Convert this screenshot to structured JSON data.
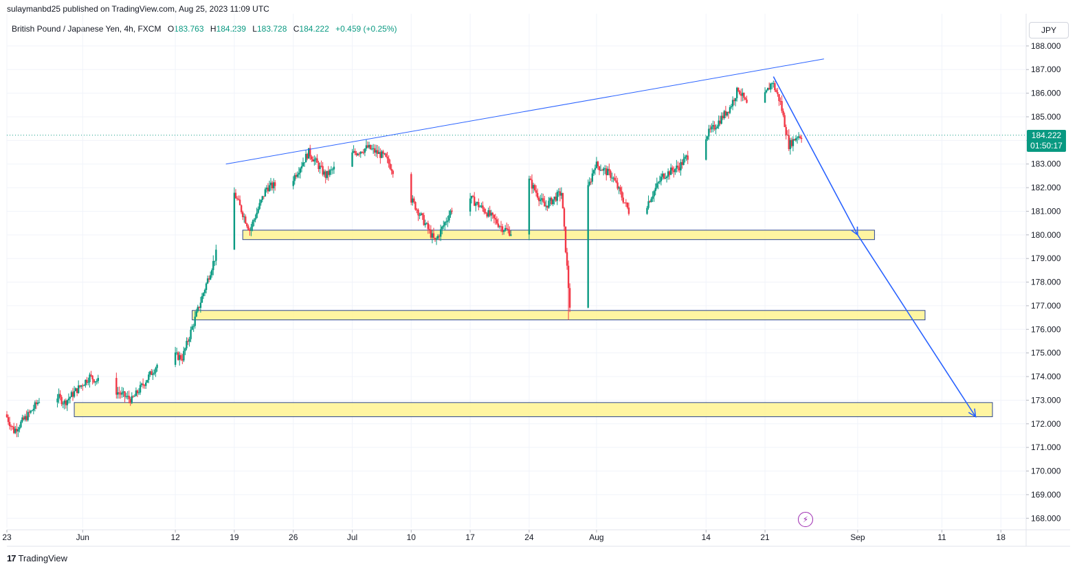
{
  "header": {
    "published": "sulaymanbd25 published on TradingView.com, Aug 25, 2023 11:09 UTC",
    "symbol": "British Pound / Japanese Yen, 4h, FXCM",
    "ohlc": [
      {
        "label": "O",
        "value": "183.763"
      },
      {
        "label": "H",
        "value": "184.239"
      },
      {
        "label": "L",
        "value": "183.728"
      },
      {
        "label": "C",
        "value": "184.222"
      }
    ],
    "change": "+0.459 (+0.25%)",
    "currency": "JPY"
  },
  "price_tag": {
    "price": "184.222",
    "countdown": "01:50:17"
  },
  "footer": {
    "brand_mark": "17",
    "brand": "TradingView"
  },
  "colors": {
    "up": "#089981",
    "down": "#f23645",
    "zone_fill": "#fff59d",
    "zone_border": "#1e3a8a",
    "trendline": "#2962ff"
  },
  "chart_data": {
    "type": "candlestick",
    "y_axis": {
      "min": 167.6,
      "max": 188.2,
      "ticks": [
        188,
        187,
        186,
        185,
        184,
        183,
        182,
        181,
        180,
        179,
        178,
        177,
        176,
        175,
        174,
        173,
        172,
        171,
        170,
        169,
        168
      ],
      "tick_labels": [
        "188.000",
        "187.000",
        "186.000",
        "185.000",
        "184.000",
        "183.000",
        "182.000",
        "181.000",
        "180.000",
        "179.000",
        "178.000",
        "177.000",
        "176.000",
        "175.000",
        "174.000",
        "173.000",
        "172.000",
        "171.000",
        "170.000",
        "169.000",
        "168.000"
      ]
    },
    "x_axis": {
      "start": "2023-05-23",
      "end": "2023-09-21",
      "ticks": [
        {
          "date": "2023-05-23",
          "label": "23"
        },
        {
          "date": "2023-06-01",
          "label": "Jun"
        },
        {
          "date": "2023-06-12",
          "label": "12"
        },
        {
          "date": "2023-06-19",
          "label": "19"
        },
        {
          "date": "2023-06-26",
          "label": "26"
        },
        {
          "date": "2023-07-03",
          "label": "Jul"
        },
        {
          "date": "2023-07-10",
          "label": "10"
        },
        {
          "date": "2023-07-17",
          "label": "17"
        },
        {
          "date": "2023-07-24",
          "label": "24"
        },
        {
          "date": "2023-08-01",
          "label": "Aug"
        },
        {
          "date": "2023-08-14",
          "label": "14"
        },
        {
          "date": "2023-08-21",
          "label": "21"
        },
        {
          "date": "2023-09-01",
          "label": "Sep"
        },
        {
          "date": "2023-09-11",
          "label": "11"
        },
        {
          "date": "2023-09-18",
          "label": "18"
        }
      ]
    },
    "price_path": [
      {
        "date": "2023-05-23",
        "price": 172.4
      },
      {
        "date": "2023-05-24",
        "price": 171.7
      },
      {
        "date": "2023-05-26",
        "price": 172.5
      },
      {
        "date": "2023-05-28",
        "price": 173.5
      },
      {
        "date": "2023-05-30",
        "price": 172.9
      },
      {
        "date": "2023-06-02",
        "price": 174.0
      },
      {
        "date": "2023-06-05",
        "price": 173.4
      },
      {
        "date": "2023-06-07",
        "price": 173.0
      },
      {
        "date": "2023-06-09",
        "price": 174.0
      },
      {
        "date": "2023-06-11",
        "price": 175.0
      },
      {
        "date": "2023-06-13",
        "price": 174.8
      },
      {
        "date": "2023-06-15",
        "price": 177.0
      },
      {
        "date": "2023-06-17",
        "price": 179.2
      },
      {
        "date": "2023-06-19",
        "price": 181.9
      },
      {
        "date": "2023-06-21",
        "price": 180.2
      },
      {
        "date": "2023-06-23",
        "price": 182.0
      },
      {
        "date": "2023-06-26",
        "price": 182.3
      },
      {
        "date": "2023-06-28",
        "price": 183.5
      },
      {
        "date": "2023-06-30",
        "price": 182.5
      },
      {
        "date": "2023-07-03",
        "price": 183.4
      },
      {
        "date": "2023-07-05",
        "price": 183.7
      },
      {
        "date": "2023-07-07",
        "price": 183.3
      },
      {
        "date": "2023-07-09",
        "price": 182.2
      },
      {
        "date": "2023-07-11",
        "price": 181.0
      },
      {
        "date": "2023-07-13",
        "price": 179.7
      },
      {
        "date": "2023-07-15",
        "price": 181.1
      },
      {
        "date": "2023-07-17",
        "price": 181.6
      },
      {
        "date": "2023-07-19",
        "price": 181.0
      },
      {
        "date": "2023-07-21",
        "price": 180.3
      },
      {
        "date": "2023-07-22",
        "price": 180.1
      },
      {
        "date": "2023-07-24",
        "price": 182.4
      },
      {
        "date": "2023-07-26",
        "price": 181.2
      },
      {
        "date": "2023-07-28",
        "price": 181.8
      },
      {
        "date": "2023-07-29",
        "price": 177.0
      },
      {
        "date": "2023-07-30",
        "price": 180.5
      },
      {
        "date": "2023-08-01",
        "price": 183.0
      },
      {
        "date": "2023-08-03",
        "price": 182.5
      },
      {
        "date": "2023-08-05",
        "price": 181.0
      },
      {
        "date": "2023-08-07",
        "price": 181.2
      },
      {
        "date": "2023-08-09",
        "price": 182.5
      },
      {
        "date": "2023-08-11",
        "price": 182.9
      },
      {
        "date": "2023-08-13",
        "price": 183.8
      },
      {
        "date": "2023-08-15",
        "price": 184.5
      },
      {
        "date": "2023-08-17",
        "price": 185.4
      },
      {
        "date": "2023-08-18",
        "price": 186.2
      },
      {
        "date": "2023-08-19",
        "price": 185.5
      },
      {
        "date": "2023-08-20",
        "price": 185.0
      },
      {
        "date": "2023-08-22",
        "price": 186.5
      },
      {
        "date": "2023-08-23",
        "price": 185.6
      },
      {
        "date": "2023-08-24",
        "price": 183.8
      },
      {
        "date": "2023-08-25",
        "price": 184.2
      }
    ],
    "last_price": 184.222,
    "zones": [
      {
        "from": "2023-06-20",
        "to": "2023-09-03",
        "low": 179.8,
        "high": 180.2
      },
      {
        "from": "2023-06-14",
        "to": "2023-09-09",
        "low": 176.4,
        "high": 176.8
      },
      {
        "from": "2023-05-31",
        "to": "2023-09-17",
        "low": 172.3,
        "high": 172.9
      }
    ],
    "trendlines": [
      {
        "from": {
          "date": "2023-06-18",
          "price": 183.0
        },
        "to": {
          "date": "2023-08-28",
          "price": 187.45
        }
      }
    ],
    "arrows": [
      {
        "from": {
          "date": "2023-08-22",
          "price": 186.7
        },
        "to": {
          "date": "2023-09-01",
          "price": 180.0
        }
      },
      {
        "from": {
          "date": "2023-09-01",
          "price": 180.0
        },
        "to": {
          "date": "2023-09-15",
          "price": 172.3
        }
      }
    ]
  }
}
